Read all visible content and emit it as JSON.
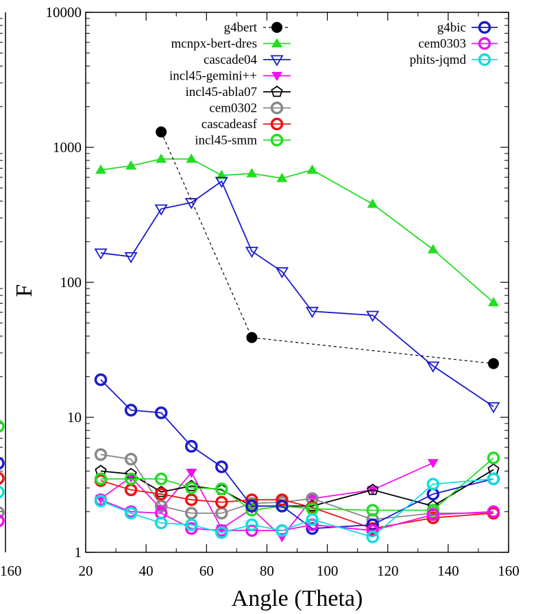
{
  "chart_data": {
    "type": "line",
    "xlabel": "Angle (Theta)",
    "ylabel": "F",
    "xlim": [
      20,
      160
    ],
    "ylim": [
      1,
      10000
    ],
    "yscale": "log",
    "xticks": [
      "20",
      "40",
      "60",
      "80",
      "100",
      "120",
      "140",
      "160"
    ],
    "yticks": [
      "1",
      "10",
      "100",
      "1000",
      "10000"
    ],
    "left_panel_xtick": "160",
    "legend_left": [
      "g4bert",
      "mcnpx-bert-dres",
      "cascade04",
      "incl45-gemini++",
      "incl45-abla07",
      "cem0302",
      "cascadeasf",
      "incl45-smm"
    ],
    "legend_right": [
      "g4bic",
      "cem0303",
      "phits-jqmd"
    ],
    "series": [
      {
        "name": "g4bert",
        "color": "#000000",
        "marker": "filled-circle",
        "dashed": true,
        "x": [
          45,
          75,
          155
        ],
        "y": [
          1300,
          39,
          25
        ]
      },
      {
        "name": "mcnpx-bert-dres",
        "color": "#22dd22",
        "marker": "filled-triangle-up",
        "x": [
          25,
          35,
          45,
          55,
          65,
          75,
          85,
          95,
          115,
          135,
          155
        ],
        "y": [
          680,
          730,
          820,
          820,
          620,
          640,
          590,
          680,
          380,
          175,
          71
        ]
      },
      {
        "name": "cascade04",
        "color": "#1a1acc",
        "marker": "open-triangle-down",
        "x": [
          25,
          35,
          45,
          55,
          65,
          75,
          85,
          95,
          115,
          135,
          155
        ],
        "y": [
          165,
          155,
          350,
          390,
          560,
          170,
          120,
          61,
          57,
          24,
          12
        ]
      },
      {
        "name": "incl45-gemini++",
        "color": "#ee11ee",
        "marker": "filled-triangle-down",
        "x": [
          25,
          35,
          45,
          55,
          65,
          75,
          85,
          95,
          115,
          135
        ],
        "y": [
          2.5,
          3.6,
          2.1,
          3.9,
          1.5,
          2.1,
          1.3,
          2.5,
          2.9,
          4.6
        ]
      },
      {
        "name": "incl45-abla07",
        "color": "#000000",
        "marker": "open-pentagon",
        "x": [
          25,
          35,
          45,
          55,
          65,
          75,
          85,
          95,
          115,
          135,
          155
        ],
        "y": [
          4.0,
          3.8,
          2.8,
          3.1,
          2.9,
          2.2,
          2.2,
          2.2,
          2.9,
          2.2,
          4.1
        ]
      },
      {
        "name": "cem0302",
        "color": "#888888",
        "marker": "open-circle",
        "x": [
          25,
          35,
          45,
          55,
          65,
          75,
          85,
          95,
          115,
          135,
          155
        ],
        "y": [
          5.3,
          4.9,
          2.2,
          1.95,
          1.95,
          2.3,
          2.35,
          2.5,
          1.75,
          1.95,
          1.95
        ]
      },
      {
        "name": "cascadeasf",
        "color": "#ee1111",
        "marker": "open-circle",
        "x": [
          25,
          35,
          45,
          55,
          65,
          75,
          85,
          95,
          115,
          135,
          155
        ],
        "y": [
          3.4,
          2.9,
          2.7,
          2.45,
          2.35,
          2.45,
          2.45,
          2.15,
          1.5,
          1.8,
          1.95
        ]
      },
      {
        "name": "incl45-smm",
        "color": "#22dd22",
        "marker": "open-circle",
        "x": [
          25,
          35,
          45,
          55,
          65,
          75,
          85,
          95,
          115,
          135,
          155
        ],
        "y": [
          3.5,
          3.5,
          3.5,
          3.0,
          2.95,
          2.05,
          2.2,
          2.1,
          2.05,
          2.05,
          5.0
        ]
      },
      {
        "name": "g4bic",
        "color": "#1a1acc",
        "marker": "open-circle",
        "x": [
          25,
          35,
          45,
          55,
          65,
          75,
          85,
          95,
          115,
          135,
          155
        ],
        "y": [
          19,
          11.3,
          10.8,
          6.1,
          4.3,
          2.2,
          2.2,
          1.5,
          1.6,
          2.7,
          3.5
        ]
      },
      {
        "name": "cem0303",
        "color": "#ee11ee",
        "marker": "open-circle",
        "x": [
          25,
          35,
          45,
          55,
          65,
          75,
          85,
          95,
          115,
          135,
          155
        ],
        "y": [
          2.45,
          2.0,
          1.95,
          1.5,
          1.45,
          1.45,
          1.45,
          1.6,
          1.45,
          1.9,
          2.0
        ]
      },
      {
        "name": "phits-jqmd",
        "color": "#11dddd",
        "marker": "open-circle",
        "x": [
          25,
          35,
          45,
          55,
          65,
          75,
          85,
          95,
          115,
          135,
          155
        ],
        "y": [
          2.4,
          1.95,
          1.65,
          1.6,
          1.4,
          1.6,
          1.45,
          1.75,
          1.3,
          3.2,
          3.5
        ]
      }
    ]
  }
}
